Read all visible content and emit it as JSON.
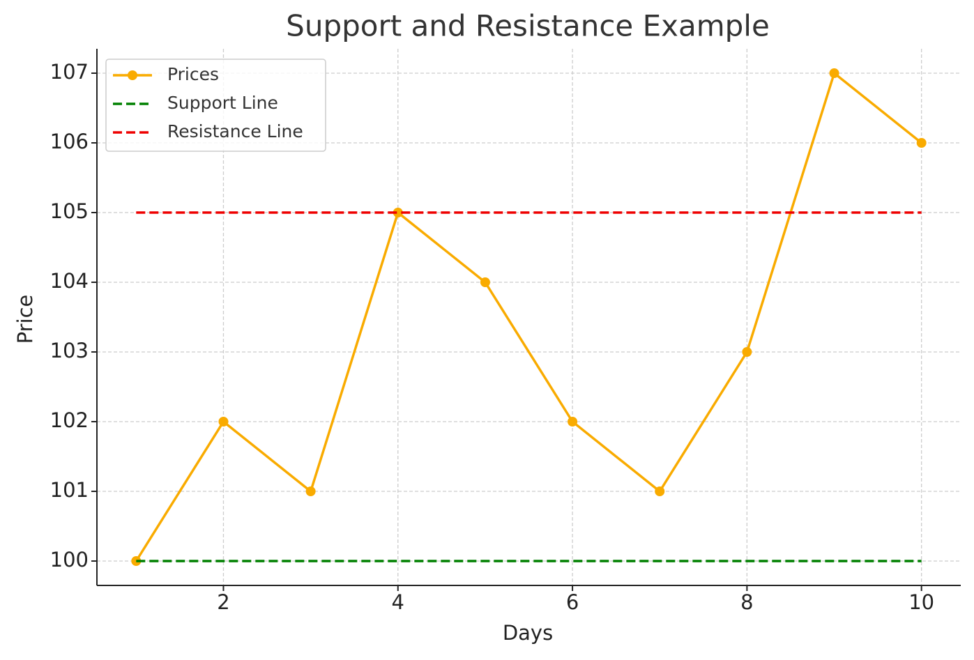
{
  "chart_data": {
    "type": "line",
    "title": "Support and Resistance Example",
    "x_label": "Days",
    "y_label": "Price",
    "x": [
      1,
      2,
      3,
      4,
      5,
      6,
      7,
      8,
      9,
      10
    ],
    "series": [
      {
        "name": "Prices",
        "color": "#f9ab00",
        "style": "solid",
        "marker": "circle",
        "values": [
          100,
          102,
          101,
          105,
          104,
          102,
          101,
          103,
          107,
          106
        ]
      },
      {
        "name": "Support Line",
        "color": "#008000",
        "style": "dashed",
        "marker": "none",
        "values": [
          100,
          100,
          100,
          100,
          100,
          100,
          100,
          100,
          100,
          100
        ]
      },
      {
        "name": "Resistance Line",
        "color": "#ee0000",
        "style": "dashed",
        "marker": "none",
        "values": [
          105,
          105,
          105,
          105,
          105,
          105,
          105,
          105,
          105,
          105
        ]
      }
    ],
    "xlim": [
      0.55,
      10.45
    ],
    "ylim": [
      99.65,
      107.35
    ],
    "xticks": [
      2,
      4,
      6,
      8,
      10
    ],
    "yticks": [
      100,
      101,
      102,
      103,
      104,
      105,
      106,
      107
    ],
    "grid": true,
    "legend": "upper left"
  }
}
